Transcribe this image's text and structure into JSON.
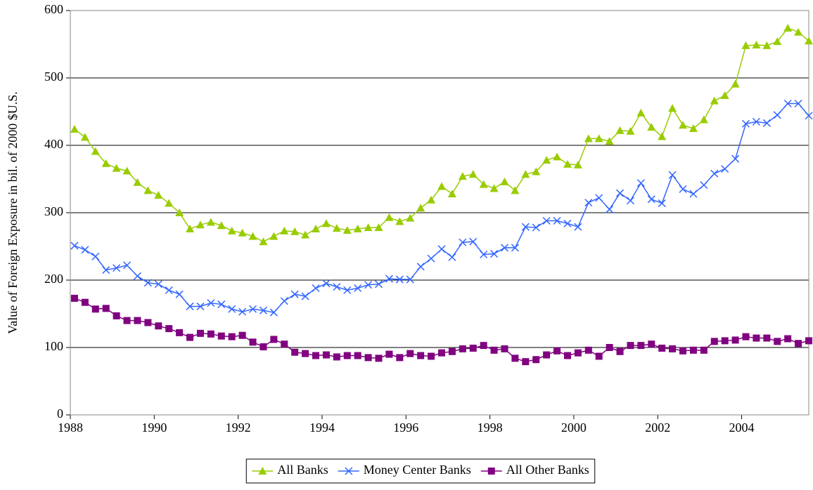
{
  "chart_data": {
    "type": "line",
    "y_label": "Value of Foreign Exposure in bil. of 2000 $U.S.",
    "x": [
      1988.1,
      1988.35,
      1988.6,
      1988.85,
      1989.1,
      1989.35,
      1989.6,
      1989.85,
      1990.1,
      1990.35,
      1990.6,
      1990.85,
      1991.1,
      1991.35,
      1991.6,
      1991.85,
      1992.1,
      1992.35,
      1992.6,
      1992.85,
      1993.1,
      1993.35,
      1993.6,
      1993.85,
      1994.1,
      1994.35,
      1994.6,
      1994.85,
      1995.1,
      1995.35,
      1995.6,
      1995.85,
      1996.1,
      1996.35,
      1996.6,
      1996.85,
      1997.1,
      1997.35,
      1997.6,
      1997.85,
      1998.1,
      1998.35,
      1998.6,
      1998.85,
      1999.1,
      1999.35,
      1999.6,
      1999.85,
      2000.1,
      2000.35,
      2000.6,
      2000.85,
      2001.1,
      2001.35,
      2001.6,
      2001.85,
      2002.1,
      2002.35,
      2002.6,
      2002.85,
      2003.1,
      2003.35,
      2003.6,
      2003.85,
      2004.1,
      2004.35,
      2004.6,
      2004.85,
      2005.1,
      2005.35,
      2005.6
    ],
    "series": [
      {
        "name": "All Banks",
        "color": "#99cc00",
        "marker": "triangle",
        "values": [
          424,
          412,
          391,
          373,
          366,
          362,
          345,
          333,
          326,
          314,
          300,
          276,
          282,
          286,
          281,
          273,
          270,
          265,
          257,
          265,
          273,
          272,
          267,
          276,
          284,
          277,
          274,
          276,
          278,
          278,
          293,
          287,
          292,
          307,
          319,
          339,
          328,
          354,
          357,
          342,
          336,
          346,
          333,
          357,
          361,
          378,
          383,
          372,
          371,
          410,
          410,
          406,
          422,
          421,
          448,
          427,
          413,
          455,
          430,
          425,
          438,
          466,
          474,
          491,
          548,
          549,
          548,
          554,
          574,
          568,
          555
        ]
      },
      {
        "name": "Money Center Banks",
        "color": "#3366ff",
        "marker": "x",
        "values": [
          251,
          245,
          235,
          215,
          218,
          222,
          206,
          196,
          194,
          185,
          179,
          161,
          161,
          166,
          164,
          157,
          153,
          157,
          155,
          152,
          169,
          179,
          176,
          188,
          195,
          190,
          185,
          188,
          193,
          194,
          202,
          201,
          201,
          220,
          232,
          246,
          234,
          256,
          257,
          238,
          239,
          248,
          248,
          279,
          278,
          288,
          288,
          284,
          279,
          315,
          322,
          305,
          329,
          318,
          344,
          320,
          314,
          356,
          335,
          328,
          341,
          358,
          365,
          380,
          432,
          435,
          433,
          445,
          462,
          462,
          444
        ]
      },
      {
        "name": "All Other Banks",
        "color": "#800080",
        "marker": "square",
        "values": [
          173,
          167,
          157,
          158,
          147,
          140,
          140,
          137,
          132,
          128,
          122,
          115,
          121,
          120,
          117,
          116,
          118,
          108,
          101,
          112,
          105,
          93,
          91,
          88,
          89,
          86,
          88,
          88,
          85,
          84,
          90,
          85,
          91,
          88,
          87,
          92,
          94,
          98,
          99,
          103,
          96,
          98,
          84,
          79,
          82,
          89,
          95,
          88,
          92,
          96,
          87,
          100,
          94,
          103,
          103,
          105,
          99,
          98,
          95,
          96,
          96,
          109,
          110,
          111,
          116,
          114,
          114,
          109,
          113,
          106,
          110
        ]
      }
    ],
    "xlim": [
      1988,
      2005.6
    ],
    "xticks": [
      1988,
      1990,
      1992,
      1994,
      1996,
      1998,
      2000,
      2002,
      2004
    ],
    "ylim": [
      0,
      600
    ],
    "yticks": [
      0,
      100,
      200,
      300,
      400,
      500,
      600
    ],
    "grid": true,
    "legend": "bottom"
  }
}
